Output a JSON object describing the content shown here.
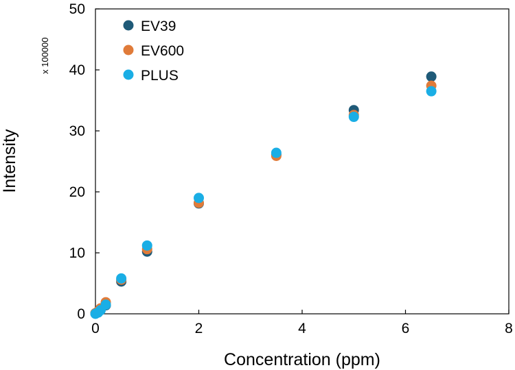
{
  "chart_data": {
    "type": "scatter",
    "title": "",
    "xlabel": "Concentration (ppm)",
    "ylabel": "Intensity",
    "y_multiplier": "x 100000",
    "xlim": [
      0,
      8
    ],
    "ylim": [
      0,
      50
    ],
    "xticks": [
      0,
      2,
      4,
      6,
      8
    ],
    "yticks": [
      0,
      10,
      20,
      30,
      40,
      50
    ],
    "grid": false,
    "legend_position": "top-left",
    "series": [
      {
        "name": "EV39",
        "color": "#1f5a78",
        "x": [
          0,
          0.05,
          0.1,
          0.2,
          0.5,
          1,
          2,
          3.5,
          5,
          6.5
        ],
        "y": [
          0.1,
          0.3,
          0.8,
          1.4,
          5.3,
          10.2,
          18.1,
          26.1,
          33.4,
          38.9
        ]
      },
      {
        "name": "EV600",
        "color": "#e07b39",
        "x": [
          0,
          0.05,
          0.1,
          0.2,
          0.5,
          1,
          2,
          3.5,
          5,
          6.5
        ],
        "y": [
          0.1,
          0.4,
          0.9,
          1.9,
          5.6,
          10.6,
          18.2,
          25.9,
          32.6,
          37.4
        ]
      },
      {
        "name": "PLUS",
        "color": "#1aaee5",
        "x": [
          0,
          0.05,
          0.1,
          0.2,
          0.5,
          1,
          2,
          3.5,
          5,
          6.5
        ],
        "y": [
          0.0,
          0.2,
          0.6,
          1.5,
          5.8,
          11.2,
          19.0,
          26.4,
          32.3,
          36.5
        ]
      }
    ]
  }
}
